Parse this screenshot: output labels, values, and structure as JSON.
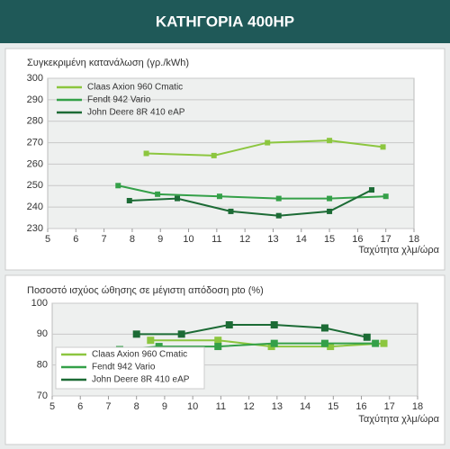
{
  "header": {
    "title": "ΚΑΤΗΓΟΡΙΑ 400HP"
  },
  "chart_data": [
    {
      "type": "line",
      "title": "Συγκεκριμένη κατανάλωση (γρ./kWh)",
      "x_label": "Ταχύτητα χλμ/ώρα",
      "xlim": [
        5,
        18
      ],
      "xticks": [
        5,
        6,
        7,
        8,
        9,
        10,
        11,
        12,
        13,
        14,
        15,
        16,
        17,
        18
      ],
      "ylim": [
        230,
        300
      ],
      "yticks": [
        230,
        240,
        250,
        260,
        270,
        280,
        290,
        300
      ],
      "grid": true,
      "legend": "top-left",
      "series": [
        {
          "name": "Claas Axion 960 Cmatic",
          "color": "#8cc63f",
          "x": [
            8.5,
            10.9,
            12.8,
            15,
            16.9
          ],
          "values": [
            265,
            264,
            270,
            271,
            268
          ]
        },
        {
          "name": "Fendt 942 Vario",
          "color": "#34a048",
          "x": [
            7.5,
            8.9,
            11.1,
            13.2,
            15,
            17
          ],
          "values": [
            250,
            246,
            245,
            244,
            244,
            245
          ]
        },
        {
          "name": "John Deere 8R 410 eAP",
          "color": "#1c6b35",
          "x": [
            7.9,
            9.6,
            11.5,
            13.2,
            15,
            16.5
          ],
          "values": [
            243,
            244,
            238,
            236,
            238,
            248
          ]
        }
      ]
    },
    {
      "type": "line",
      "title": "Ποσοστό ισχύος ώθησης σε μέγιστη απόδοση pto  (%)",
      "x_label": "Ταχύτητα χλμ/ώρα",
      "xlim": [
        5,
        18
      ],
      "xticks": [
        5,
        6,
        7,
        8,
        9,
        10,
        11,
        12,
        13,
        14,
        15,
        16,
        17,
        18
      ],
      "ylim": [
        70,
        100
      ],
      "yticks": [
        70,
        80,
        90,
        100
      ],
      "grid": true,
      "legend": "bottom-left",
      "series": [
        {
          "name": "Claas Axion 960 Cmatic",
          "color": "#8cc63f",
          "x": [
            8.5,
            10.9,
            12.8,
            14.9,
            16.8
          ],
          "values": [
            88,
            88,
            86,
            86,
            87
          ]
        },
        {
          "name": "Fendt 942 Vario",
          "color": "#34a048",
          "x": [
            7.4,
            8.8,
            10.9,
            12.9,
            14.7,
            16.5
          ],
          "values": [
            85,
            86,
            86,
            87,
            87,
            87
          ]
        },
        {
          "name": "John Deere 8R 410 eAP",
          "color": "#1c6b35",
          "x": [
            8,
            9.6,
            11.3,
            12.9,
            14.7,
            16.2
          ],
          "values": [
            90,
            90,
            93,
            93,
            92,
            89
          ]
        }
      ]
    }
  ]
}
